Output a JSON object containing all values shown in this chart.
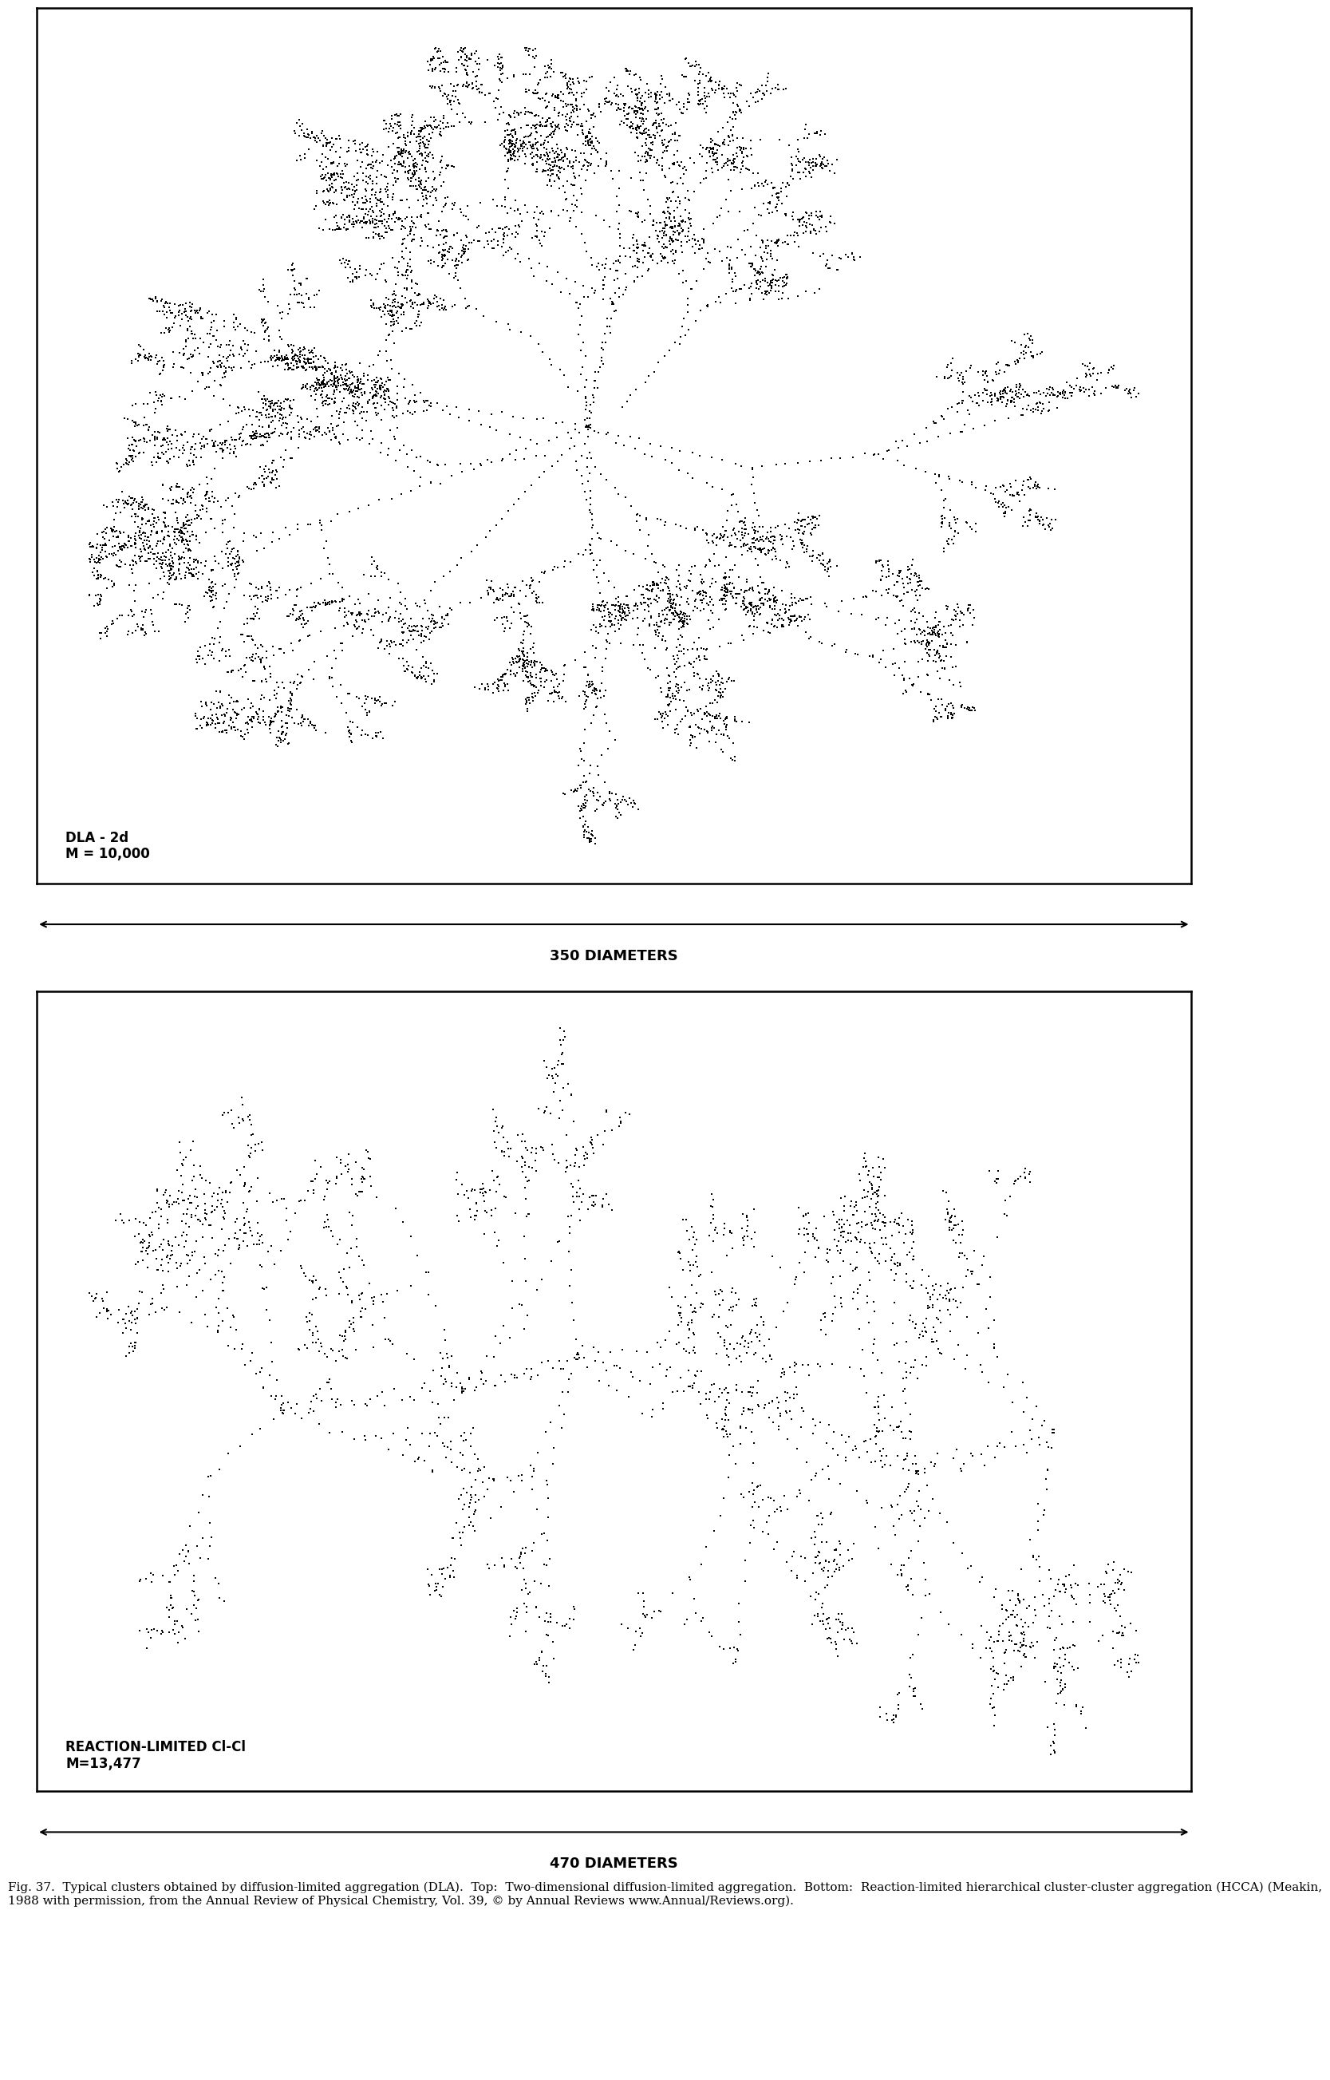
{
  "figure_width": 18.08,
  "figure_height": 27.08,
  "background_color": "#ffffff",
  "top_box": {
    "label_line1": "DLA - 2d",
    "label_line2": "M = 10,000",
    "scale_label": "350 DIAMETERS"
  },
  "bottom_box": {
    "label_line1": "REACTION-LIMITED Cl-Cl",
    "label_line2": "M=13,477",
    "scale_label": "470 DIAMETERS"
  },
  "caption_lines": [
    "Fig. 37.  Typical clusters obtained by diffusion-limited aggregation (DLA).  Top:  Two-dimensional diffusion-limited aggregation.  Bottom:  Reaction-limited hierarchical cluster-",
    "cluster aggregation (HCCA) (Meakin, 1988 with permission, from the Annual Review of Physical Chemistry, Vol. 39, © by Annual Reviews www.Annual/Reviews.org)."
  ],
  "box_color": "#000000",
  "cluster_color": "#000000",
  "text_color": "#000000",
  "dla_seed": 42,
  "hcca_seed": 7
}
